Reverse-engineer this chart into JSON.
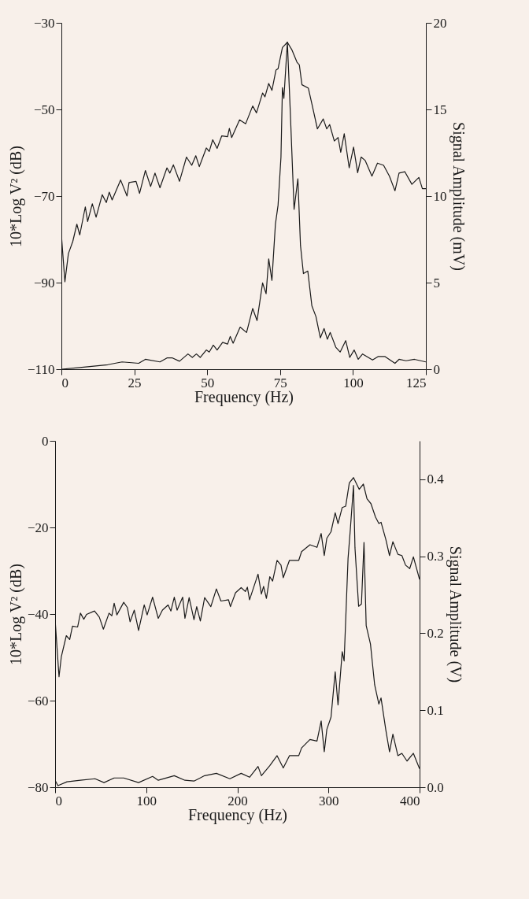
{
  "chart_data": [
    {
      "type": "line",
      "xlabel": "Frequency (Hz)",
      "ylabel": "10*Log V² (dB)",
      "y2label": "Signal Amplitude (mV)",
      "xlim": [
        0,
        125
      ],
      "xticks": [
        0,
        25,
        50,
        75,
        100,
        125
      ],
      "ylim": [
        -110,
        -30
      ],
      "yticks": [
        -110,
        -90,
        -70,
        -50,
        -30
      ],
      "y2lim": [
        0,
        20
      ],
      "y2ticks": [
        0,
        5,
        10,
        15,
        20
      ],
      "series": [
        {
          "color": "#1a1a1a",
          "x": [
            0,
            1.2,
            2.4,
            3.9,
            5.3,
            6.3,
            8.2,
            9,
            10.6,
            11.9,
            14,
            15.4,
            16.4,
            17.4,
            20.3,
            22.5,
            23.2,
            25.6,
            26.8,
            28.8,
            30.6,
            32.1,
            33.8,
            36.2,
            37.2,
            38.4,
            40.5,
            42.9,
            44.7,
            46.1,
            47.3,
            49.7,
            50.7,
            51.9,
            53.4,
            55,
            57,
            57.6,
            58.4,
            61.1,
            63.2,
            65.6,
            66.9,
            69,
            69.8,
            71.1,
            72.2,
            73.6,
            74.3,
            75.8,
            77.5,
            79.1,
            80.8,
            81.6,
            82.5,
            84.7,
            85.9,
            87.8,
            89.8,
            91,
            92,
            93.6,
            94.9,
            95.8,
            97,
            98.7,
            100.2,
            101.6,
            102.8,
            104.2,
            106.5,
            108.4,
            110.5,
            112.5,
            114.4,
            115.8,
            117.8,
            120.2,
            122.6,
            123.8,
            125
          ],
          "values": [
            -79,
            -89.8,
            -83.3,
            -80.5,
            -76.5,
            -79,
            -72.5,
            -75.9,
            -71.8,
            -74.9,
            -69.7,
            -71.5,
            -69.1,
            -70.9,
            -66.3,
            -70,
            -66.9,
            -66.6,
            -69.4,
            -64.1,
            -67.8,
            -64.7,
            -68.1,
            -63.5,
            -64.7,
            -62.8,
            -66.6,
            -61,
            -62.9,
            -60.7,
            -63.2,
            -58.9,
            -59.7,
            -57,
            -59,
            -56.1,
            -56.3,
            -54.4,
            -56.5,
            -52.4,
            -53.3,
            -49.2,
            -50.8,
            -46.2,
            -47.1,
            -44,
            -45.6,
            -40.9,
            -40.6,
            -35.7,
            -34.5,
            -36.3,
            -39.1,
            -39.7,
            -44.3,
            -45.1,
            -48.7,
            -54.5,
            -52.2,
            -54.5,
            -53.5,
            -57.3,
            -56.5,
            -59.9,
            -55.6,
            -63.5,
            -58.7,
            -64.6,
            -61,
            -61.8,
            -65.4,
            -62.4,
            -62.9,
            -65.4,
            -68.8,
            -64.7,
            -64.4,
            -67.3,
            -65.7,
            -68.3,
            -68.3
          ]
        },
        {
          "color": "#1a1a1a",
          "axis": "y2",
          "x": [
            0,
            6.3,
            15.9,
            20.8,
            26.5,
            28.8,
            33.8,
            36.2,
            38.1,
            40.5,
            43.4,
            44.9,
            46.3,
            47.6,
            49.7,
            50.7,
            52.1,
            53.4,
            55.3,
            57,
            57.9,
            58.9,
            61.3,
            63.5,
            65.6,
            67.1,
            69,
            70.2,
            71.1,
            72.2,
            73.4,
            74.3,
            75.3,
            75.8,
            76.3,
            77.5,
            78.5,
            79.8,
            81.1,
            82,
            83,
            84.5,
            85.9,
            87.3,
            88.8,
            90.1,
            91.2,
            92.2,
            94.1,
            95.6,
            97.5,
            98.9,
            100.4,
            101.8,
            103.3,
            106.7,
            108.6,
            111,
            114.4,
            115.8,
            118.2,
            121.1,
            125
          ],
          "values": [
            0,
            0.1,
            0.26,
            0.42,
            0.34,
            0.57,
            0.42,
            0.65,
            0.65,
            0.46,
            0.88,
            0.68,
            0.88,
            0.68,
            1.11,
            0.99,
            1.39,
            1.11,
            1.55,
            1.45,
            1.89,
            1.5,
            2.43,
            2.12,
            3.51,
            2.81,
            4.98,
            4.36,
            6.37,
            5.13,
            8.38,
            9.46,
            12.24,
            16.26,
            15.64,
            18.89,
            14.87,
            9.23,
            11,
            7.14,
            5.52,
            5.67,
            3.66,
            3.04,
            1.81,
            2.35,
            1.73,
            2.12,
            1.27,
            0.99,
            1.65,
            0.68,
            1.11,
            0.57,
            0.88,
            0.53,
            0.73,
            0.73,
            0.34,
            0.57,
            0.49,
            0.57,
            0.42
          ]
        }
      ]
    },
    {
      "type": "line",
      "xlabel": "Frequency (Hz)",
      "ylabel": "10*Log V² (dB)",
      "y2label": "Signal Amplitude (V)",
      "xlim": [
        0,
        400
      ],
      "xticks": [
        0,
        100,
        200,
        300,
        400
      ],
      "ylim": [
        -80,
        0
      ],
      "yticks": [
        -80,
        -60,
        -40,
        -20,
        0
      ],
      "y2lim": [
        0,
        0.45
      ],
      "y2ticks": [
        {
          "value": 0,
          "label": "0.0"
        },
        0.1,
        0.2,
        0.3,
        0.4
      ],
      "series": [
        {
          "color": "#1a1a1a",
          "x": [
            0,
            4.3,
            6.8,
            12.3,
            16,
            19.1,
            24.7,
            27.8,
            31.5,
            34.5,
            43.2,
            48.5,
            53,
            59.2,
            62.3,
            64.8,
            67.8,
            75.3,
            79.3,
            82.3,
            86.9,
            91.6,
            97.8,
            101,
            107,
            113.2,
            117.8,
            124,
            127.1,
            130.8,
            133.9,
            140,
            142.5,
            147.1,
            152.4,
            155.4,
            159.4,
            164.1,
            170.9,
            177,
            182,
            190.3,
            192.4,
            198,
            204.2,
            208.8,
            211,
            213.4,
            222.7,
            226.4,
            228.8,
            231.9,
            235.6,
            238.7,
            243.6,
            247.9,
            250.4,
            257.2,
            267.4,
            270.5,
            279.7,
            287.4,
            292,
            295.4,
            298.2,
            302.8,
            307.4,
            310.5,
            315.1,
            318.9,
            322.9,
            327.5,
            333.7,
            338.3,
            342.3,
            346.6,
            351.6,
            355.3,
            357.7,
            363,
            367,
            370.7,
            376.2,
            380.6,
            384.6,
            389.2,
            393.2,
            400
          ],
          "values": [
            -41.3,
            -54.5,
            -49.9,
            -45,
            -45.9,
            -42.8,
            -43,
            -39.8,
            -41.2,
            -40.1,
            -39.3,
            -40.7,
            -43.5,
            -39.8,
            -40.4,
            -37.5,
            -40.2,
            -37.3,
            -38.5,
            -41.8,
            -39.1,
            -43.8,
            -37.9,
            -40.2,
            -36.1,
            -41,
            -39.1,
            -37.9,
            -39.3,
            -36.1,
            -39.1,
            -36.1,
            -41,
            -36.2,
            -41.3,
            -38.3,
            -41.6,
            -36.2,
            -38.3,
            -34.2,
            -37,
            -36.7,
            -38.3,
            -35.1,
            -33.9,
            -34.8,
            -33.8,
            -36.7,
            -30.8,
            -35.4,
            -33.6,
            -36.4,
            -31.4,
            -32.4,
            -27.6,
            -28.7,
            -31.6,
            -27.6,
            -27.6,
            -25.6,
            -24,
            -24.6,
            -21.4,
            -26.5,
            -22.5,
            -21,
            -16.6,
            -19.1,
            -15.4,
            -15.1,
            -9.7,
            -8.5,
            -11.2,
            -10,
            -13.4,
            -14.5,
            -17.6,
            -19.1,
            -18.8,
            -22.8,
            -26.5,
            -23.3,
            -26.2,
            -26.5,
            -28.7,
            -29.5,
            -26.8,
            -32
          ]
        },
        {
          "color": "#1a1a1a",
          "axis": "y2",
          "x": [
            0,
            3.1,
            13,
            27.8,
            43.8,
            53.7,
            64.8,
            75.3,
            91.6,
            107,
            113.2,
            130.8,
            142.5,
            152.4,
            164.1,
            177,
            191.8,
            204.2,
            213.4,
            222.7,
            226.4,
            235.6,
            243.6,
            250.4,
            257.2,
            267.4,
            270.5,
            279.7,
            287.4,
            292,
            295.4,
            298.2,
            302.8,
            307.4,
            310.5,
            315.1,
            317.2,
            321.5,
            324,
            327.5,
            329.1,
            333.1,
            336.2,
            339,
            341.4,
            346.1,
            350.7,
            355.3,
            357.7,
            363,
            367,
            370.7,
            376.2,
            380.6,
            386.2,
            393.2,
            400
          ],
          "values": [
            0.009,
            0.002,
            0.007,
            0.009,
            0.011,
            0.006,
            0.012,
            0.012,
            0.006,
            0.014,
            0.009,
            0.015,
            0.009,
            0.008,
            0.015,
            0.018,
            0.011,
            0.018,
            0.013,
            0.027,
            0.015,
            0.028,
            0.041,
            0.025,
            0.041,
            0.041,
            0.051,
            0.062,
            0.06,
            0.086,
            0.046,
            0.075,
            0.091,
            0.15,
            0.107,
            0.176,
            0.164,
            0.297,
            0.335,
            0.392,
            0.311,
            0.235,
            0.238,
            0.318,
            0.21,
            0.186,
            0.133,
            0.108,
            0.116,
            0.074,
            0.046,
            0.069,
            0.041,
            0.044,
            0.034,
            0.044,
            0.024
          ]
        }
      ]
    }
  ]
}
